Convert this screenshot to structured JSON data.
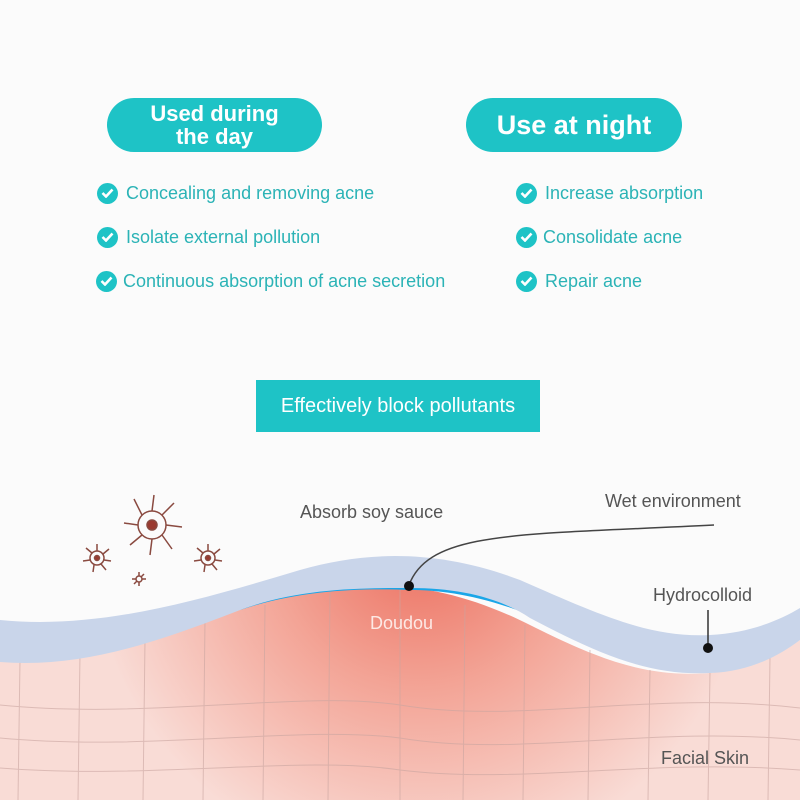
{
  "day": {
    "title": "Used during the day",
    "title_line1": "Used during",
    "title_line2": "the day",
    "items": [
      "Concealing and removing acne",
      "Isolate external pollution",
      "Continuous absorption of acne secretion"
    ]
  },
  "night": {
    "title": "Use at night",
    "items": [
      "Increase absorption",
      "Consolidate acne",
      "Repair acne"
    ]
  },
  "banner": "Effectively block pollutants",
  "diagram": {
    "labels": {
      "absorb": "Absorb soy sauce",
      "wet": "Wet environment",
      "hydrocolloid": "Hydrocolloid",
      "doudou": "Doudou",
      "skin": "Facial Skin"
    }
  },
  "colors": {
    "accent": "#1ec3c6",
    "text_accent": "#2bb3b6",
    "hydrocolloid": "#c9d5ea",
    "wet_layer": "#1aa6e8",
    "skin": "#f4c9c2",
    "acne": "#ec6e5e"
  }
}
